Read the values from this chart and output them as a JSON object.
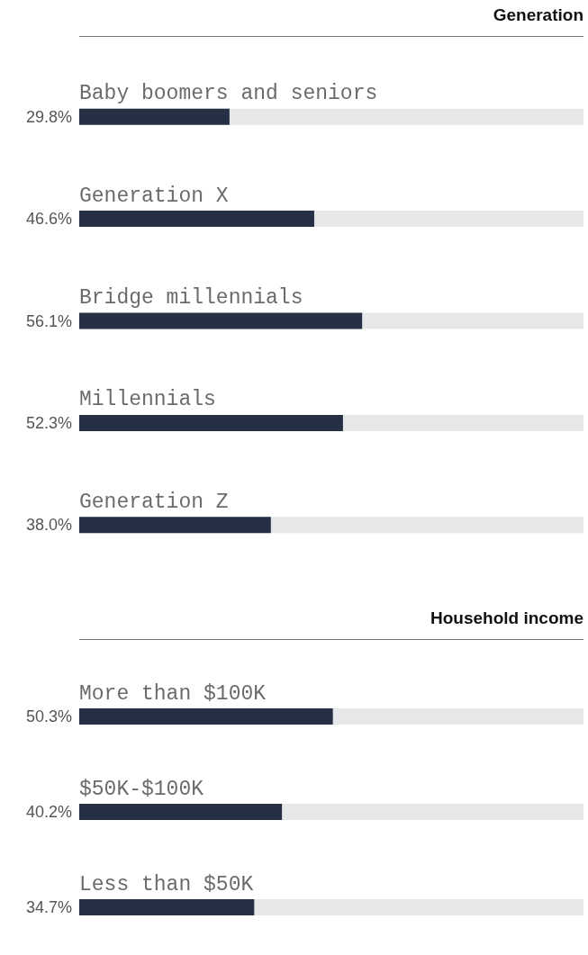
{
  "chart_data": [
    {
      "type": "bar",
      "orientation": "horizontal",
      "title": "Generation",
      "categories": [
        "Baby boomers and seniors",
        "Generation X",
        "Bridge millennials",
        "Millennials",
        "Generation Z"
      ],
      "values": [
        29.8,
        46.6,
        56.1,
        52.3,
        38.0
      ],
      "value_labels": [
        "29.8%",
        "46.6%",
        "56.1%",
        "52.3%",
        "38.0%"
      ],
      "color": "#253044",
      "xlim": [
        0,
        100
      ],
      "tick_labels": "y"
    },
    {
      "type": "bar",
      "orientation": "horizontal",
      "title": "Household income",
      "categories": [
        "More than $100K",
        "$50K-$100K",
        "Less than $50K"
      ],
      "values": [
        50.3,
        40.2,
        34.7
      ],
      "value_labels": [
        "50.3%",
        "40.2%",
        "34.7%"
      ],
      "color": "#253044",
      "xlim": [
        0,
        100
      ],
      "tick_labels": "y"
    }
  ]
}
